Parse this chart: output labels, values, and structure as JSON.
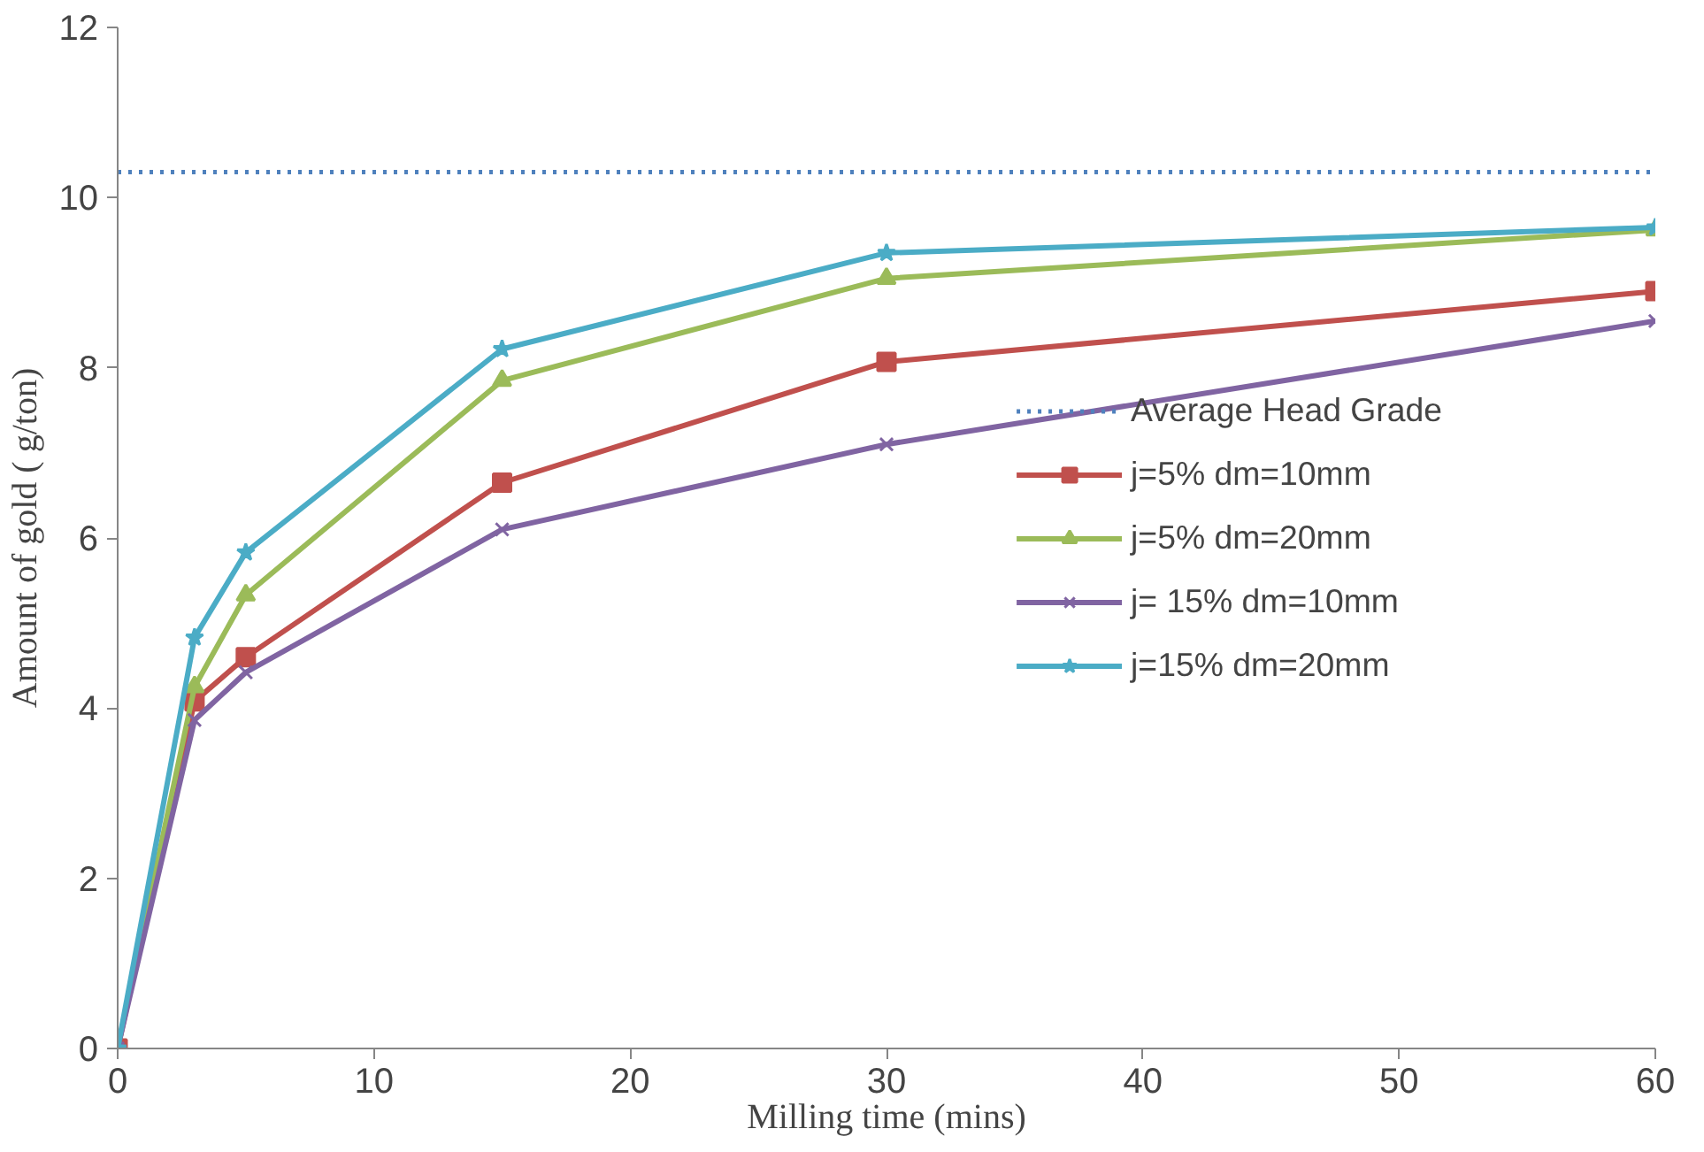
{
  "chart_data": {
    "type": "line",
    "xlabel": "Milling time (mins)",
    "ylabel": "Amount of gold ( g/ton)",
    "x": [
      0,
      3,
      5,
      15,
      30,
      60
    ],
    "series": [
      {
        "name": "j=5% dm=10mm",
        "color": "#c0504d",
        "marker": "square",
        "values": [
          0,
          4.08,
          4.6,
          6.65,
          8.07,
          8.9
        ]
      },
      {
        "name": "j=5% dm=20mm",
        "color": "#9bbb59",
        "marker": "triangle",
        "values": [
          0,
          4.25,
          5.33,
          7.85,
          9.05,
          9.62
        ]
      },
      {
        "name": "j= 15% dm=10mm",
        "color": "#8064a2",
        "marker": "cross",
        "values": [
          0,
          3.86,
          4.42,
          6.1,
          7.1,
          8.55
        ]
      },
      {
        "name": "j=15% dm=20mm",
        "color": "#4bacc6",
        "marker": "star",
        "values": [
          0,
          4.83,
          5.83,
          8.22,
          9.35,
          9.65
        ]
      }
    ],
    "ref_lines": [
      {
        "axis": "y",
        "value": 10.3,
        "label": "Average Head Grade",
        "color": "#4f81bd",
        "line_style": "dotted"
      }
    ],
    "xlim": [
      0,
      60
    ],
    "xticks": [
      0,
      10,
      20,
      30,
      40,
      50,
      60
    ],
    "ylim": [
      0,
      12
    ],
    "yticks": [
      0,
      2,
      4,
      6,
      8,
      10,
      12
    ],
    "grid": false,
    "legend": "right",
    "line_style": "solid"
  }
}
